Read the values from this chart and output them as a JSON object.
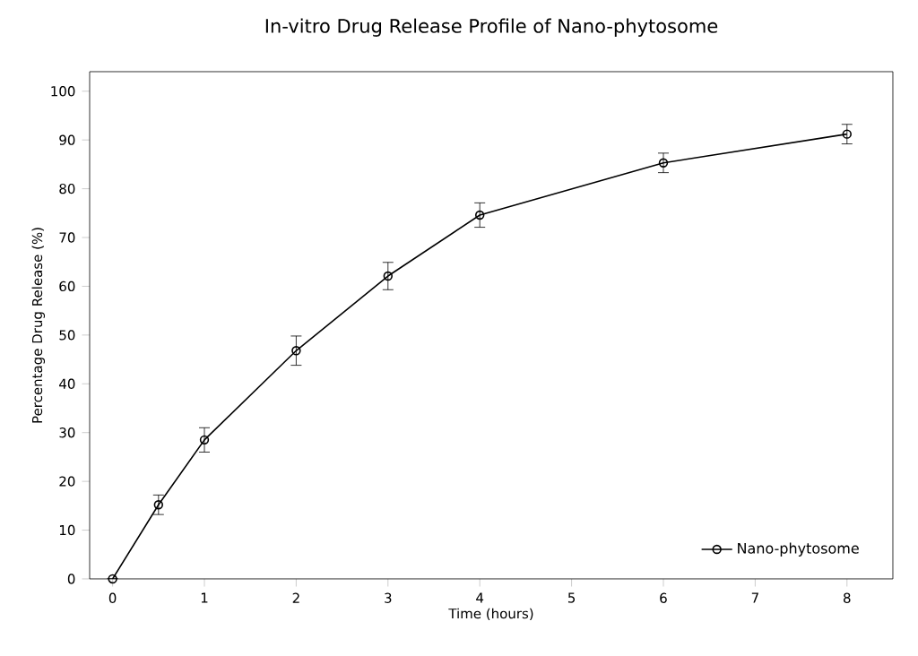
{
  "chart_data": {
    "type": "line",
    "title": "In-vitro Drug Release Profile of Nano-phytosome",
    "xlabel": "Time (hours)",
    "ylabel": "Percentage Drug Release (%)",
    "x": [
      0,
      0.5,
      1,
      2,
      3,
      4,
      6,
      8
    ],
    "series": [
      {
        "name": "Nano-phytosome",
        "color": "#000000",
        "values": [
          0,
          15.2,
          28.5,
          46.8,
          62.1,
          74.6,
          85.3,
          91.2
        ],
        "errors": [
          null,
          2,
          2.5,
          3,
          2.8,
          2.5,
          2,
          2
        ]
      }
    ],
    "xlim": [
      -0.25,
      8.5
    ],
    "ylim": [
      0,
      104
    ],
    "xticks": [
      0,
      1,
      2,
      3,
      4,
      5,
      6,
      7,
      8
    ],
    "yticks": [
      0,
      10,
      20,
      30,
      40,
      50,
      60,
      70,
      80,
      90,
      100
    ],
    "marker": "circle",
    "line_style": "solid",
    "legend": "bottom right",
    "grid": false
  }
}
